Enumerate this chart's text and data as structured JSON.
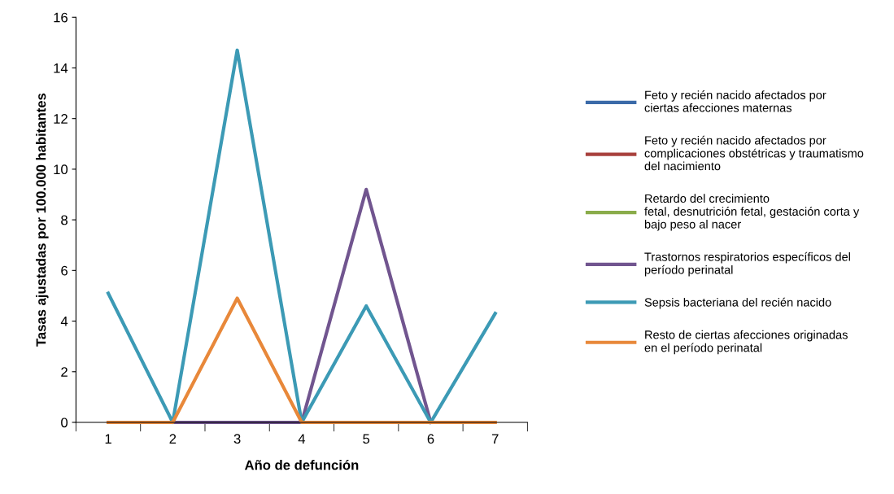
{
  "chart_data": {
    "type": "line",
    "xlabel": "Año de defunción",
    "ylabel": "Tasas ajustadas por 100.000 habitantes",
    "categories": [
      "1",
      "2",
      "3",
      "4",
      "5",
      "6",
      "7"
    ],
    "series": [
      {
        "name": "Feto y recién nacido afectados por\nciertas afecciones maternas",
        "color": "#3b6aa8",
        "values": [
          null,
          null,
          null,
          null,
          null,
          null,
          null
        ]
      },
      {
        "name": "Feto y recién nacido afectados por\ncomplicaciones obstétricas y traumatismo\ndel nacimiento",
        "color": "#a8403c",
        "values": [
          null,
          null,
          null,
          null,
          null,
          null,
          null
        ]
      },
      {
        "name": "Retardo del crecimiento\nfetal, desnutrición fetal, gestación corta y\nbajo peso al nacer",
        "color": "#8aac4a",
        "values": [
          null,
          null,
          null,
          null,
          null,
          null,
          null
        ]
      },
      {
        "name": "Trastornos respiratorios específicos del\nperíodo perinatal",
        "color": "#71558f",
        "values": [
          0,
          0,
          0,
          0,
          9.2,
          0,
          null
        ]
      },
      {
        "name": "Sepsis bacteriana del recién nacido",
        "color": "#3c9ab5",
        "values": [
          5.1,
          0,
          14.7,
          0,
          4.6,
          0,
          4.3
        ]
      },
      {
        "name": "Resto de ciertas afecciones originadas\nen el período perinatal",
        "color": "#e8883a",
        "values": [
          0,
          0,
          4.9,
          0,
          0,
          0,
          0
        ]
      }
    ],
    "ylim": [
      0,
      16
    ],
    "yticks": [
      0,
      2,
      4,
      6,
      8,
      10,
      12,
      14,
      16
    ],
    "grid": false,
    "legend": "right",
    "marker": "none",
    "line_style": "solid"
  }
}
